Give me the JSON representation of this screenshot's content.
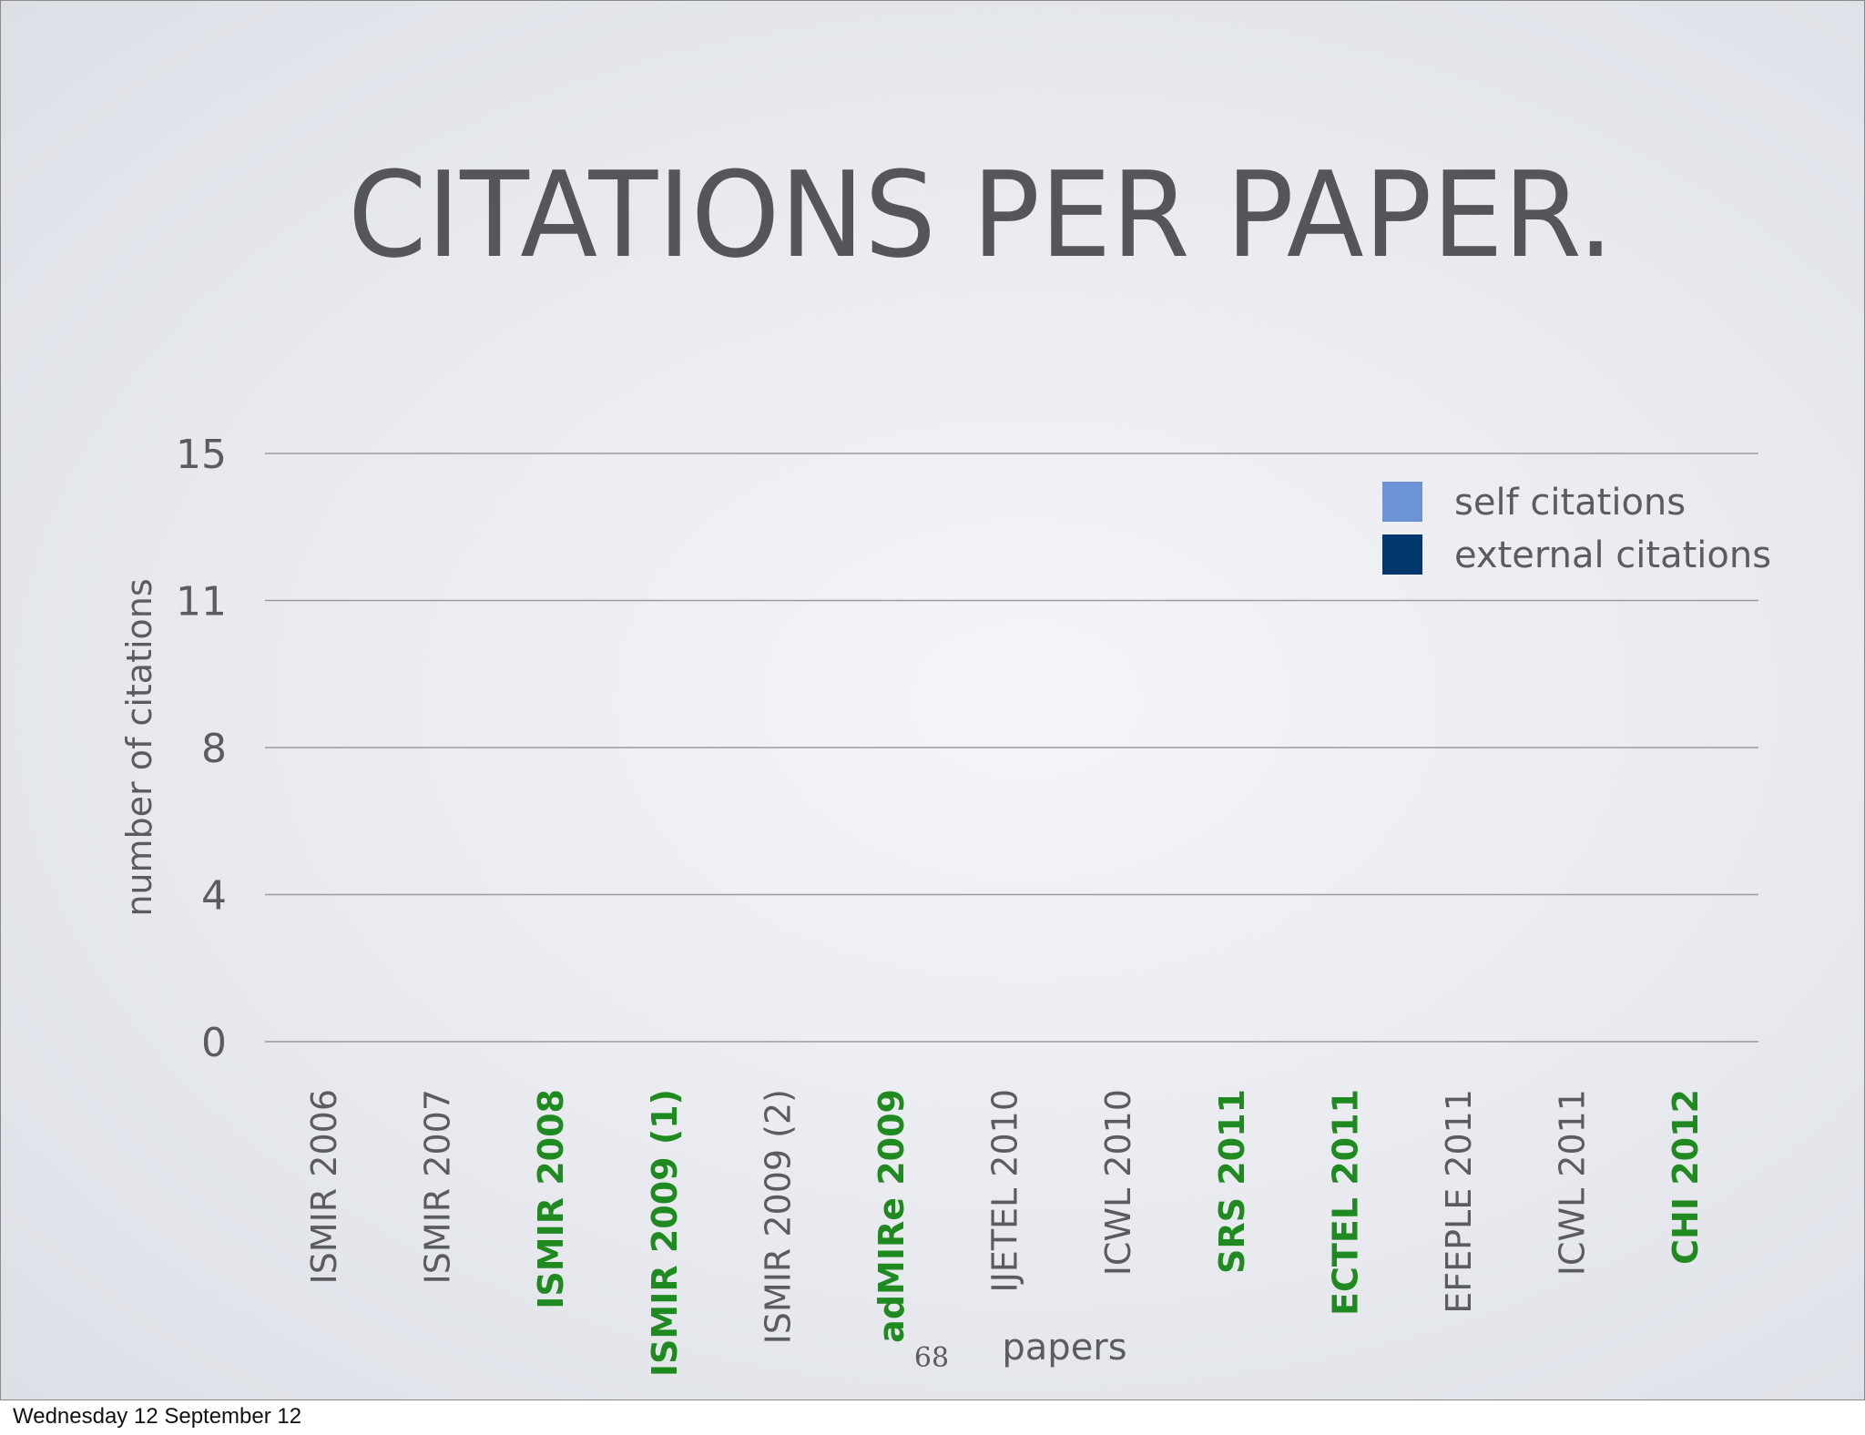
{
  "footer": {
    "date": "Wednesday 12 September 12"
  },
  "colors": {
    "title": "#555659",
    "axis_text": "#5b5c60",
    "gridline": "#9a9ba0",
    "highlight_label": "#1f8a1f",
    "self_citations": "#6b93d6",
    "external_citations": "#03386e"
  },
  "chart_data": {
    "type": "bar",
    "stacked": true,
    "title": "CITATIONS PER PAPER.",
    "xlabel": "papers",
    "ylabel": "number of citations",
    "page_number": "68",
    "ylim": [
      0,
      15
    ],
    "yticks": [
      "0",
      "4",
      "8",
      "11",
      "15"
    ],
    "ytick_values": [
      0,
      3.75,
      7.5,
      11.25,
      15
    ],
    "grid": true,
    "legend_position": "top-right",
    "categories": [
      "ISMIR 2006",
      "ISMIR 2007",
      "ISMIR 2008",
      "ISMIR 2009 (1)",
      "ISMIR 2009 (2)",
      "adMIRe 2009",
      "IJETEL 2010",
      "ICWL 2010",
      "SRS 2011",
      "ECTEL 2011",
      "EFEPLE 2011",
      "ICWL 2011",
      "CHI 2012"
    ],
    "highlighted_categories": [
      "ISMIR 2008",
      "ISMIR 2009 (1)",
      "adMIRe 2009",
      "SRS 2011",
      "ECTEL 2011",
      "CHI 2012"
    ],
    "series": [
      {
        "name": "self citations",
        "color": "#6b93d6",
        "values": [
          0,
          0,
          0,
          0,
          0,
          0,
          0,
          0,
          0,
          0,
          0,
          0,
          0
        ]
      },
      {
        "name": "external citations",
        "color": "#03386e",
        "values": [
          0,
          0,
          0,
          0,
          0,
          0,
          0,
          0,
          0,
          0,
          0,
          0,
          0
        ]
      }
    ]
  }
}
